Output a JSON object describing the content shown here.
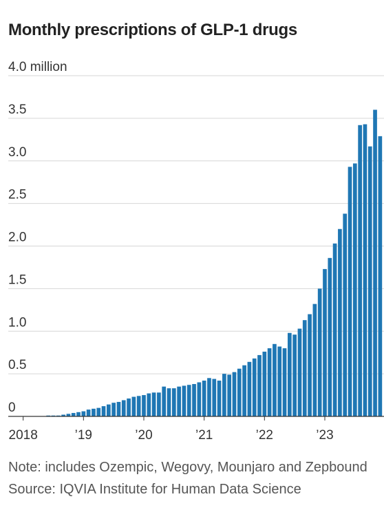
{
  "title": "Monthly prescriptions of GLP-1 drugs",
  "note": "Note: includes Ozempic, Wegovy, Mounjaro and Zepbound",
  "source": "Source: IQVIA Institute for Human Data Science",
  "colors": {
    "bar": "#1f77b4",
    "grid": "#d6d6d6",
    "axis": "#333333"
  },
  "chart_data": {
    "type": "bar",
    "title": "Monthly prescriptions of GLP-1 drugs",
    "ylim": [
      0,
      4.0
    ],
    "yticks": [
      0,
      0.5,
      1.0,
      1.5,
      2.0,
      2.5,
      3.0,
      3.5,
      4.0
    ],
    "ytick_labels": [
      "0",
      "0.5",
      "1.0",
      "1.5",
      "2.0",
      "2.5",
      "3.0",
      "3.5",
      "4.0 million"
    ],
    "xtick_labels": [
      "2018",
      "’19",
      "’20",
      "’21",
      "’22",
      "’23"
    ],
    "grid": true,
    "categories": [
      "2018-01",
      "2018-02",
      "2018-03",
      "2018-04",
      "2018-05",
      "2018-06",
      "2018-07",
      "2018-08",
      "2018-09",
      "2018-10",
      "2018-11",
      "2018-12",
      "2019-01",
      "2019-02",
      "2019-03",
      "2019-04",
      "2019-05",
      "2019-06",
      "2019-07",
      "2019-08",
      "2019-09",
      "2019-10",
      "2019-11",
      "2019-12",
      "2020-01",
      "2020-02",
      "2020-03",
      "2020-04",
      "2020-05",
      "2020-06",
      "2020-07",
      "2020-08",
      "2020-09",
      "2020-10",
      "2020-11",
      "2020-12",
      "2021-01",
      "2021-02",
      "2021-03",
      "2021-04",
      "2021-05",
      "2021-06",
      "2021-07",
      "2021-08",
      "2021-09",
      "2021-10",
      "2021-11",
      "2021-12",
      "2022-01",
      "2022-02",
      "2022-03",
      "2022-04",
      "2022-05",
      "2022-06",
      "2022-07",
      "2022-08",
      "2022-09",
      "2022-10",
      "2022-11",
      "2022-12",
      "2023-01",
      "2023-02",
      "2023-03",
      "2023-04",
      "2023-05",
      "2023-06",
      "2023-07",
      "2023-08",
      "2023-09",
      "2023-10",
      "2023-11",
      "2023-12"
    ],
    "values": [
      0,
      0,
      0,
      0,
      0,
      0.01,
      0.01,
      0.01,
      0.02,
      0.03,
      0.04,
      0.05,
      0.06,
      0.08,
      0.09,
      0.1,
      0.12,
      0.14,
      0.16,
      0.17,
      0.19,
      0.21,
      0.23,
      0.24,
      0.25,
      0.27,
      0.28,
      0.28,
      0.35,
      0.33,
      0.33,
      0.35,
      0.36,
      0.37,
      0.38,
      0.4,
      0.42,
      0.45,
      0.44,
      0.42,
      0.5,
      0.49,
      0.52,
      0.56,
      0.6,
      0.64,
      0.68,
      0.72,
      0.76,
      0.8,
      0.85,
      0.82,
      0.8,
      0.98,
      0.96,
      1.03,
      1.13,
      1.2,
      1.32,
      1.5,
      1.73,
      1.86,
      2.03,
      2.2,
      2.38,
      2.93,
      2.97,
      3.42,
      3.43,
      3.17,
      3.6,
      3.29
    ]
  }
}
